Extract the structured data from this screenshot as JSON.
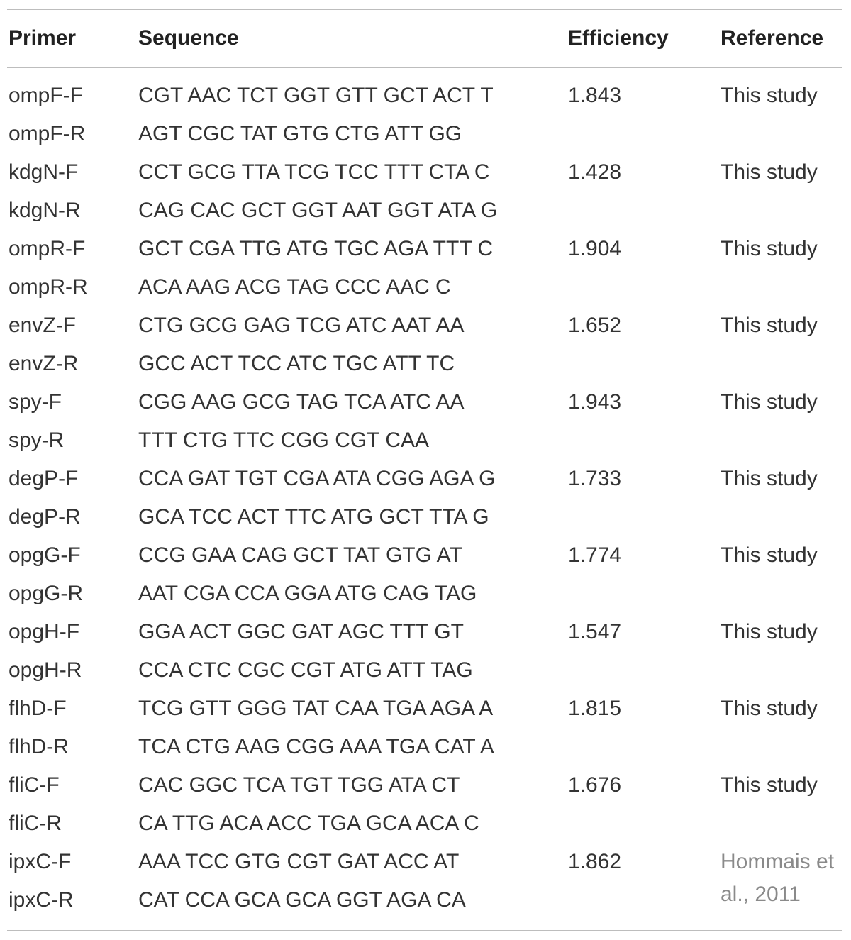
{
  "table": {
    "header": [
      "Primer",
      "Sequence",
      "Efficiency",
      "Reference"
    ],
    "pairs": [
      {
        "rows": [
          [
            "ompF-F",
            "CGT AAC TCT GGT GTT GCT ACT T"
          ],
          [
            "ompF-R",
            "AGT CGC TAT GTG CTG ATT GG"
          ]
        ],
        "efficiency": "1.843",
        "reference": "This study"
      },
      {
        "rows": [
          [
            "kdgN-F",
            "CCT GCG TTA TCG TCC TTT CTA C"
          ],
          [
            "kdgN-R",
            "CAG CAC GCT GGT AAT GGT ATA G"
          ]
        ],
        "efficiency": "1.428",
        "reference": "This study"
      },
      {
        "rows": [
          [
            "ompR-F",
            "GCT CGA TTG ATG TGC AGA TTT C"
          ],
          [
            "ompR-R",
            "ACA AAG ACG TAG CCC AAC C"
          ]
        ],
        "efficiency": "1.904",
        "reference": "This study"
      },
      {
        "rows": [
          [
            "envZ-F",
            "CTG GCG GAG TCG ATC AAT AA"
          ],
          [
            "envZ-R",
            "GCC ACT TCC ATC TGC ATT TC"
          ]
        ],
        "efficiency": "1.652",
        "reference": "This study"
      },
      {
        "rows": [
          [
            "spy-F",
            "CGG AAG GCG TAG TCA ATC AA"
          ],
          [
            "spy-R",
            "TTT CTG TTC CGG CGT CAA"
          ]
        ],
        "efficiency": "1.943",
        "reference": "This study"
      },
      {
        "rows": [
          [
            "degP-F",
            "CCA GAT TGT CGA ATA CGG AGA G"
          ],
          [
            "degP-R",
            "GCA TCC ACT TTC ATG GCT TTA G"
          ]
        ],
        "efficiency": "1.733",
        "reference": "This study"
      },
      {
        "rows": [
          [
            "opgG-F",
            "CCG GAA CAG GCT TAT GTG AT"
          ],
          [
            "opgG-R",
            "AAT CGA CCA GGA ATG CAG TAG"
          ]
        ],
        "efficiency": "1.774",
        "reference": "This study"
      },
      {
        "rows": [
          [
            "opgH-F",
            "GGA ACT GGC GAT AGC TTT GT"
          ],
          [
            "opgH-R",
            "CCA CTC CGC CGT ATG ATT TAG"
          ]
        ],
        "efficiency": "1.547",
        "reference": "This study"
      },
      {
        "rows": [
          [
            "flhD-F",
            "TCG GTT GGG TAT CAA TGA AGA A"
          ],
          [
            "flhD-R",
            "TCA CTG AAG CGG AAA TGA CAT A"
          ]
        ],
        "efficiency": "1.815",
        "reference": "This study"
      },
      {
        "rows": [
          [
            "fliC-F",
            "CAC GGC TCA TGT TGG ATA CT"
          ],
          [
            "fliC-R",
            "CA TTG ACA ACC TGA GCA ACA C"
          ]
        ],
        "efficiency": "1.676",
        "reference": "This study"
      },
      {
        "rows": [
          [
            "ipxC-F",
            "AAA TCC GTG CGT GAT ACC AT"
          ],
          [
            "ipxC-R",
            "CAT CCA GCA GCA GGT AGA CA"
          ]
        ],
        "efficiency": "1.862",
        "reference": "Hommais et al., 2011"
      }
    ]
  }
}
